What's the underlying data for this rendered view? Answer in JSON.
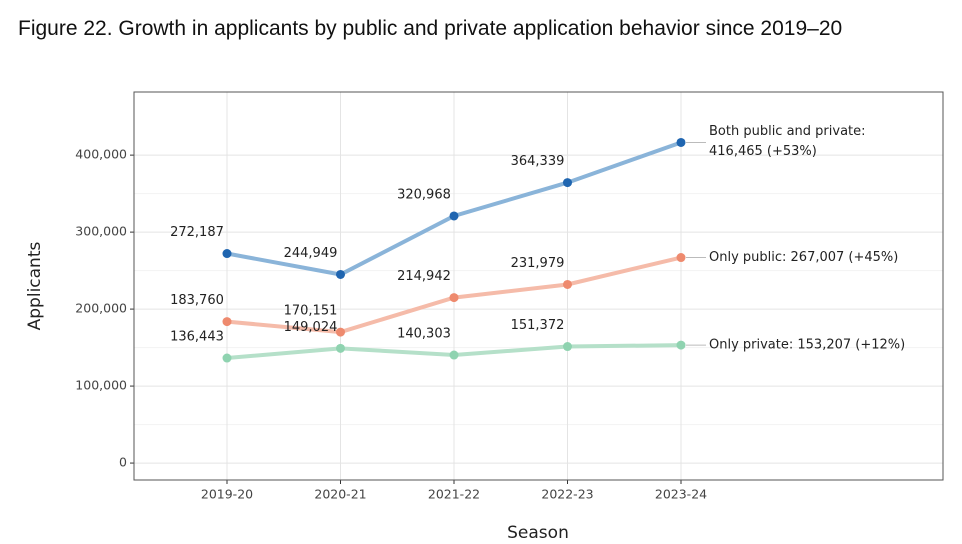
{
  "chart_data": {
    "type": "line",
    "title": "Figure 22. Growth in applicants by public and private application behavior since 2019–20",
    "x_label": "Season",
    "y_label": "Applicants",
    "categories": [
      "2019-20",
      "2020-21",
      "2021-22",
      "2022-23",
      "2023-24"
    ],
    "series": [
      {
        "name": "Both public and private",
        "color": "#8ab4d9",
        "point_color": "#1f65b0",
        "values": [
          272187,
          244949,
          320968,
          364339,
          416465
        ],
        "value_labels": [
          "272,187",
          "244,949",
          "320,968",
          "364,339"
        ],
        "end_label": [
          "Both public and private:",
          "416,465 (+53%)"
        ]
      },
      {
        "name": "Only public",
        "color": "#f5bba9",
        "point_color": "#ee8a6e",
        "values": [
          183760,
          170151,
          214942,
          231979,
          267007
        ],
        "value_labels": [
          "183,760",
          "170,151",
          "214,942",
          "231,979"
        ],
        "end_label": [
          "Only public: 267,007 (+45%)"
        ]
      },
      {
        "name": "Only private",
        "color": "#b5e0c9",
        "point_color": "#8fd3b0",
        "values": [
          136443,
          149024,
          140303,
          151372,
          153207
        ],
        "value_labels": [
          "136,443",
          "149,024",
          "140,303",
          "151,372"
        ],
        "end_label": [
          "Only private: 153,207 (+12%)"
        ]
      }
    ],
    "ylim": [
      -22000,
      482000
    ],
    "yticks": [
      0,
      {
        "value": 100000,
        "label": "100,000"
      },
      {
        "value": 200000,
        "label": "200,000"
      },
      {
        "value": 300000,
        "label": "300,000"
      },
      {
        "value": 400000,
        "label": "400,000"
      }
    ],
    "grid": true
  }
}
